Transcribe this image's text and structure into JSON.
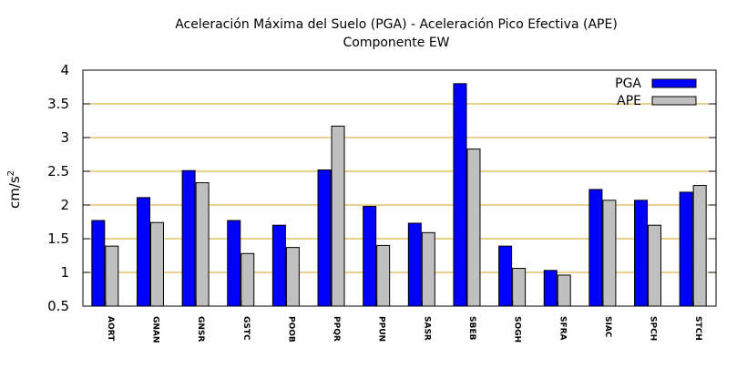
{
  "chart_data": {
    "type": "bar",
    "title": "Aceleración Máxima del Suelo (PGA) -  Aceleración Pico Efectiva (APE)",
    "subtitle": "Componente EW",
    "xlabel": "",
    "ylabel": "cm/s",
    "ylabel_superscript": "2",
    "ylim": [
      0.5,
      4
    ],
    "yticks": [
      "0.5",
      "1",
      "1.5",
      "2",
      "2.5",
      "3",
      "3.5",
      "4"
    ],
    "grid": "horizontal",
    "legend_position": "top-right",
    "categories": [
      "AORT",
      "GNAN",
      "GNSR",
      "GSTC",
      "POOB",
      "PPQR",
      "PPUN",
      "SASR",
      "SBEB",
      "SOGH",
      "SFRA",
      "SIAC",
      "SPCH",
      "STCH"
    ],
    "series": [
      {
        "name": "PGA",
        "color": "#0000ff",
        "values": [
          1.77,
          2.11,
          2.51,
          1.77,
          1.7,
          2.52,
          1.98,
          1.73,
          3.8,
          1.39,
          1.03,
          2.23,
          2.07,
          2.19
        ]
      },
      {
        "name": "APE",
        "color": "#c0c0c0",
        "values": [
          1.39,
          1.74,
          2.33,
          1.28,
          1.37,
          3.17,
          1.4,
          1.59,
          2.83,
          1.06,
          0.96,
          2.07,
          1.7,
          2.29
        ]
      }
    ],
    "colors": {
      "grid": "#daa520",
      "axis": "#000000"
    }
  }
}
